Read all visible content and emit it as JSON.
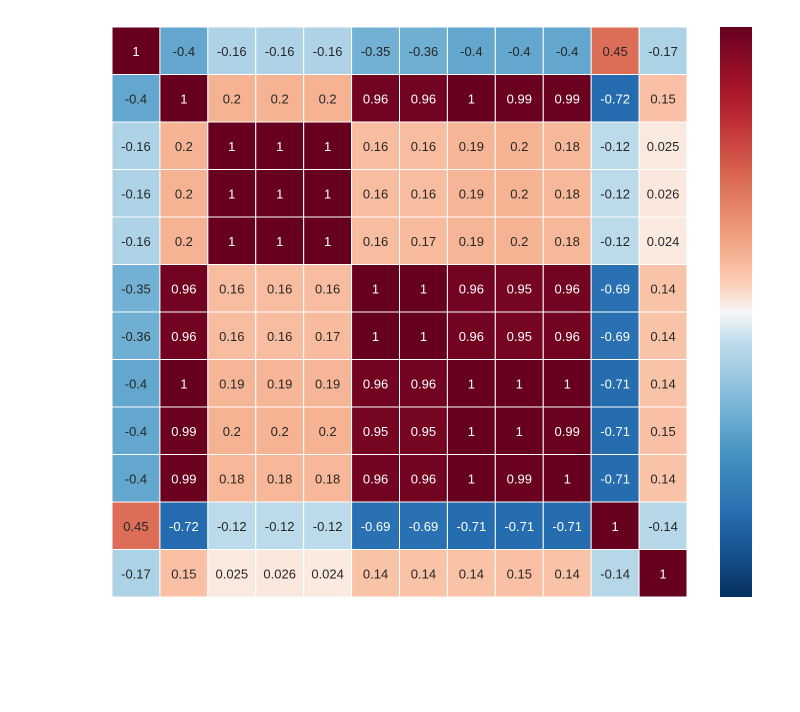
{
  "chart_data": {
    "type": "heatmap",
    "title": "",
    "xlabel": "",
    "ylabel": "",
    "row_labels": [],
    "col_labels": [],
    "values": [
      [
        1,
        -0.4,
        -0.16,
        -0.16,
        -0.16,
        -0.35,
        -0.36,
        -0.4,
        -0.4,
        -0.4,
        0.45,
        -0.17
      ],
      [
        -0.4,
        1,
        0.2,
        0.2,
        0.2,
        0.96,
        0.96,
        1,
        0.99,
        0.99,
        -0.72,
        0.15
      ],
      [
        -0.16,
        0.2,
        1,
        1,
        1,
        0.16,
        0.16,
        0.19,
        0.2,
        0.18,
        -0.12,
        0.025
      ],
      [
        -0.16,
        0.2,
        1,
        1,
        1,
        0.16,
        0.16,
        0.19,
        0.2,
        0.18,
        -0.12,
        0.026
      ],
      [
        -0.16,
        0.2,
        1,
        1,
        1,
        0.16,
        0.17,
        0.19,
        0.2,
        0.18,
        -0.12,
        0.024
      ],
      [
        -0.35,
        0.96,
        0.16,
        0.16,
        0.16,
        1,
        1,
        0.96,
        0.95,
        0.96,
        -0.69,
        0.14
      ],
      [
        -0.36,
        0.96,
        0.16,
        0.16,
        0.17,
        1,
        1,
        0.96,
        0.95,
        0.96,
        -0.69,
        0.14
      ],
      [
        -0.4,
        1,
        0.19,
        0.19,
        0.19,
        0.96,
        0.96,
        1,
        1,
        1,
        -0.71,
        0.14
      ],
      [
        -0.4,
        0.99,
        0.2,
        0.2,
        0.2,
        0.95,
        0.95,
        1,
        1,
        0.99,
        -0.71,
        0.15
      ],
      [
        -0.4,
        0.99,
        0.18,
        0.18,
        0.18,
        0.96,
        0.96,
        1,
        0.99,
        1,
        -0.71,
        0.14
      ],
      [
        0.45,
        -0.72,
        -0.12,
        -0.12,
        -0.12,
        -0.69,
        -0.69,
        -0.71,
        -0.71,
        -0.71,
        1,
        -0.14
      ],
      [
        -0.17,
        0.15,
        0.025,
        0.026,
        0.024,
        0.14,
        0.14,
        0.14,
        0.15,
        0.14,
        -0.14,
        1
      ]
    ],
    "value_range": [
      -1,
      1
    ],
    "colorscale": "RdBu_r",
    "colorbar": {
      "placement": "right",
      "ticks": []
    },
    "grid": false
  }
}
